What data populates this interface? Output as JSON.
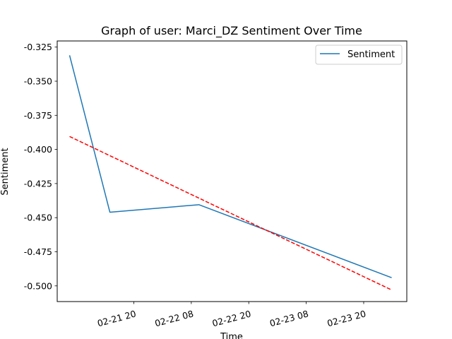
{
  "chart_data": {
    "type": "line",
    "title": "Graph of user: Marci_DZ Sentiment Over Time",
    "xlabel": "Time",
    "ylabel": "Sentiment",
    "x_tick_labels": [
      "02-21 20",
      "02-22 08",
      "02-22 20",
      "02-23 08",
      "02-23 20"
    ],
    "y_tick_labels": [
      "-0.325",
      "-0.350",
      "-0.375",
      "-0.400",
      "-0.425",
      "-0.450",
      "-0.475",
      "-0.500"
    ],
    "y_ticks": [
      -0.325,
      -0.35,
      -0.375,
      -0.4,
      -0.425,
      -0.45,
      -0.475,
      -0.5
    ],
    "x_ticks": [
      "2023-02-21T20:00",
      "2023-02-22T08:00",
      "2023-02-22T20:00",
      "2023-02-23T08:00",
      "2023-02-23T20:00"
    ],
    "xlim": [
      "2023-02-21T04:00",
      "2023-02-24T05:00"
    ],
    "ylim": [
      -0.5115,
      -0.3205
    ],
    "grid": false,
    "legend": {
      "placement": "upper right",
      "entries": [
        "Sentiment"
      ]
    },
    "series": [
      {
        "name": "Sentiment",
        "color": "#1f77b4",
        "style": "solid",
        "x": [
          "2023-02-21T06:35",
          "2023-02-21T15:00",
          "2023-02-22T09:35",
          "2023-02-24T01:50"
        ],
        "y": [
          -0.331,
          -0.446,
          -0.4405,
          -0.494
        ]
      },
      {
        "color": "#ff0000",
        "style": "dashed",
        "x": [
          "2023-02-21T06:35",
          "2023-02-24T01:50"
        ],
        "y": [
          -0.3905,
          -0.503
        ]
      }
    ]
  }
}
